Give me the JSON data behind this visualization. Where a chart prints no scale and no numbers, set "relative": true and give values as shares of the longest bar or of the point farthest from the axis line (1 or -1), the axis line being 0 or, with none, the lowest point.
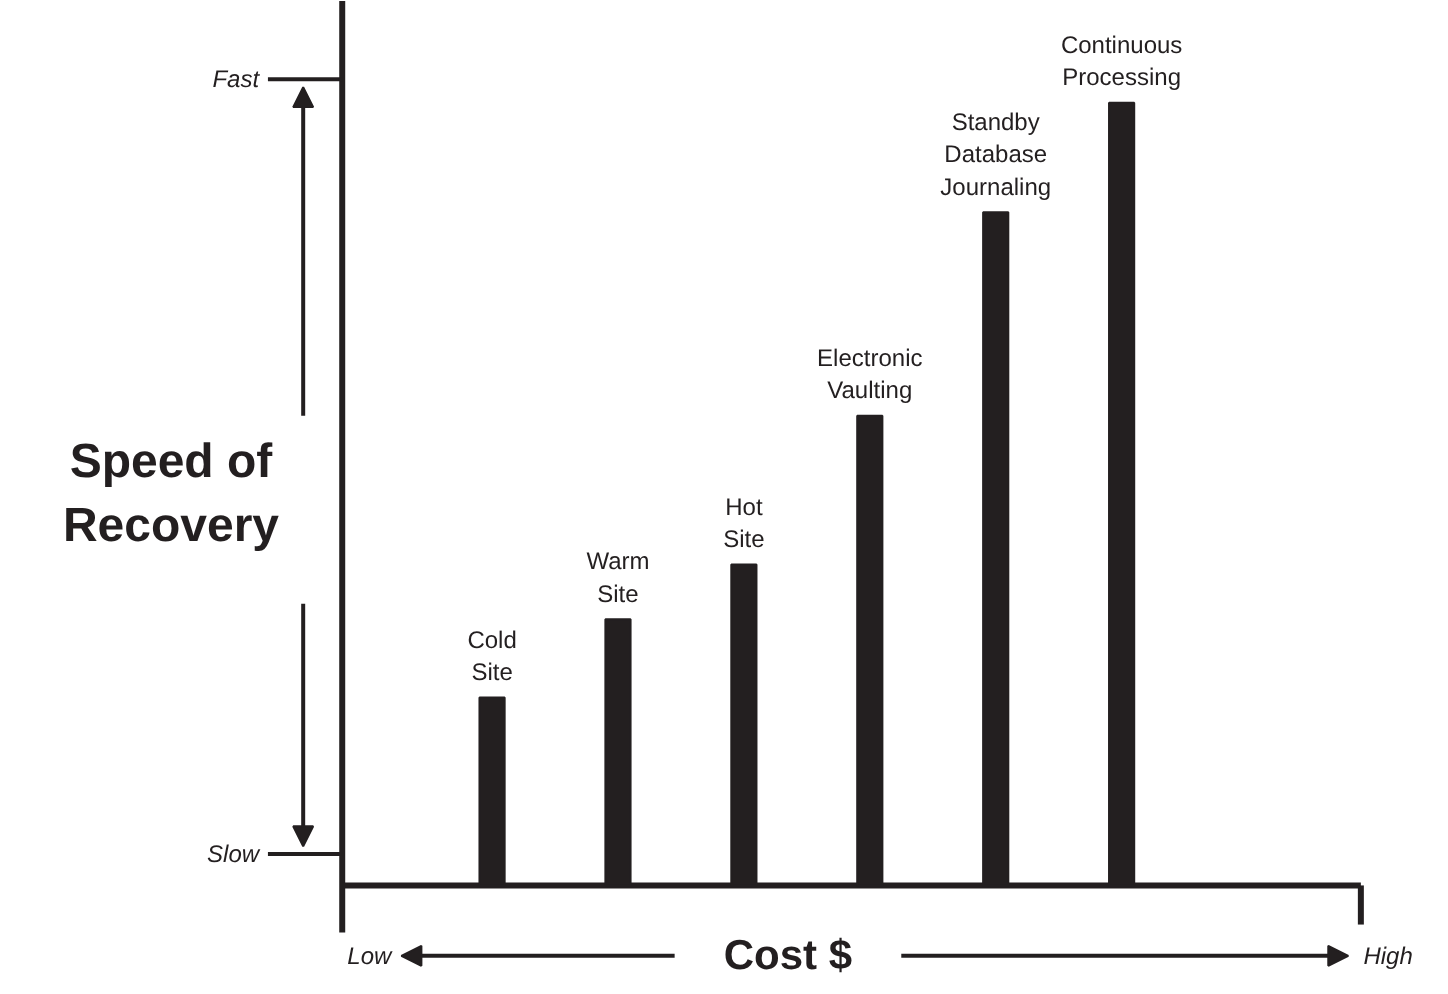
{
  "chart_data": {
    "type": "bar",
    "relative": true,
    "xlabel": "Cost $",
    "ylabel": "Speed of Recovery",
    "color": "#231f20",
    "categories": [
      "Cold Site",
      "Warm Site",
      "Hot Site",
      "Electronic Vaulting",
      "Standby Database Journaling",
      "Continuous Processing"
    ],
    "values": [
      0.24,
      0.34,
      0.41,
      0.6,
      0.86,
      1.0
    ],
    "annotations": [
      "Fast",
      "Slow",
      "Low",
      "High"
    ]
  }
}
